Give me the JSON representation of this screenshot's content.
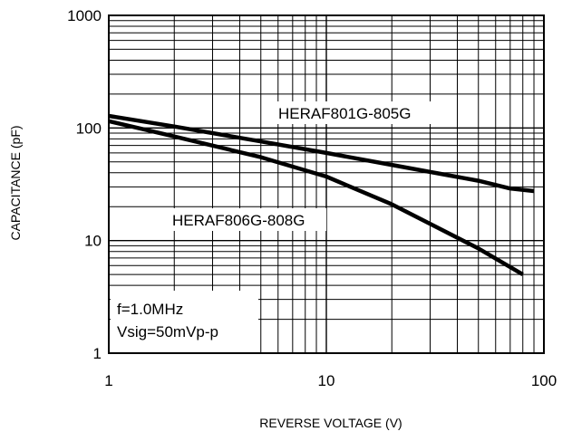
{
  "chart_data": {
    "type": "line",
    "x_scale": "log",
    "y_scale": "log",
    "xlim": [
      1,
      100
    ],
    "ylim": [
      1,
      1000
    ],
    "x_ticks": [
      1,
      10,
      100
    ],
    "x_tick_labels": [
      "1",
      "10",
      "100"
    ],
    "y_ticks": [
      1,
      10,
      100,
      1000
    ],
    "y_tick_labels": [
      "1",
      "10",
      "100",
      "1000"
    ],
    "xlabel": "REVERSE VOLTAGE (V)",
    "ylabel": "CAPACITANCE (pF)",
    "grid": true,
    "series": [
      {
        "name": "HERAF801G-805G",
        "x": [
          1,
          2,
          5,
          10,
          20,
          50,
          70,
          90
        ],
        "y": [
          128,
          103,
          76,
          60,
          47,
          34,
          29,
          27.5
        ]
      },
      {
        "name": "HERAF806G-808G",
        "x": [
          1,
          2,
          5,
          10,
          20,
          50,
          80
        ],
        "y": [
          115,
          84,
          55,
          37,
          21,
          8.5,
          5
        ]
      }
    ],
    "annotation_lines": [
      "f=1.0MHz",
      "Vsig=50mVp-p"
    ]
  },
  "colors": {
    "curve": "#000000",
    "grid": "#000000",
    "background": "#ffffff"
  }
}
